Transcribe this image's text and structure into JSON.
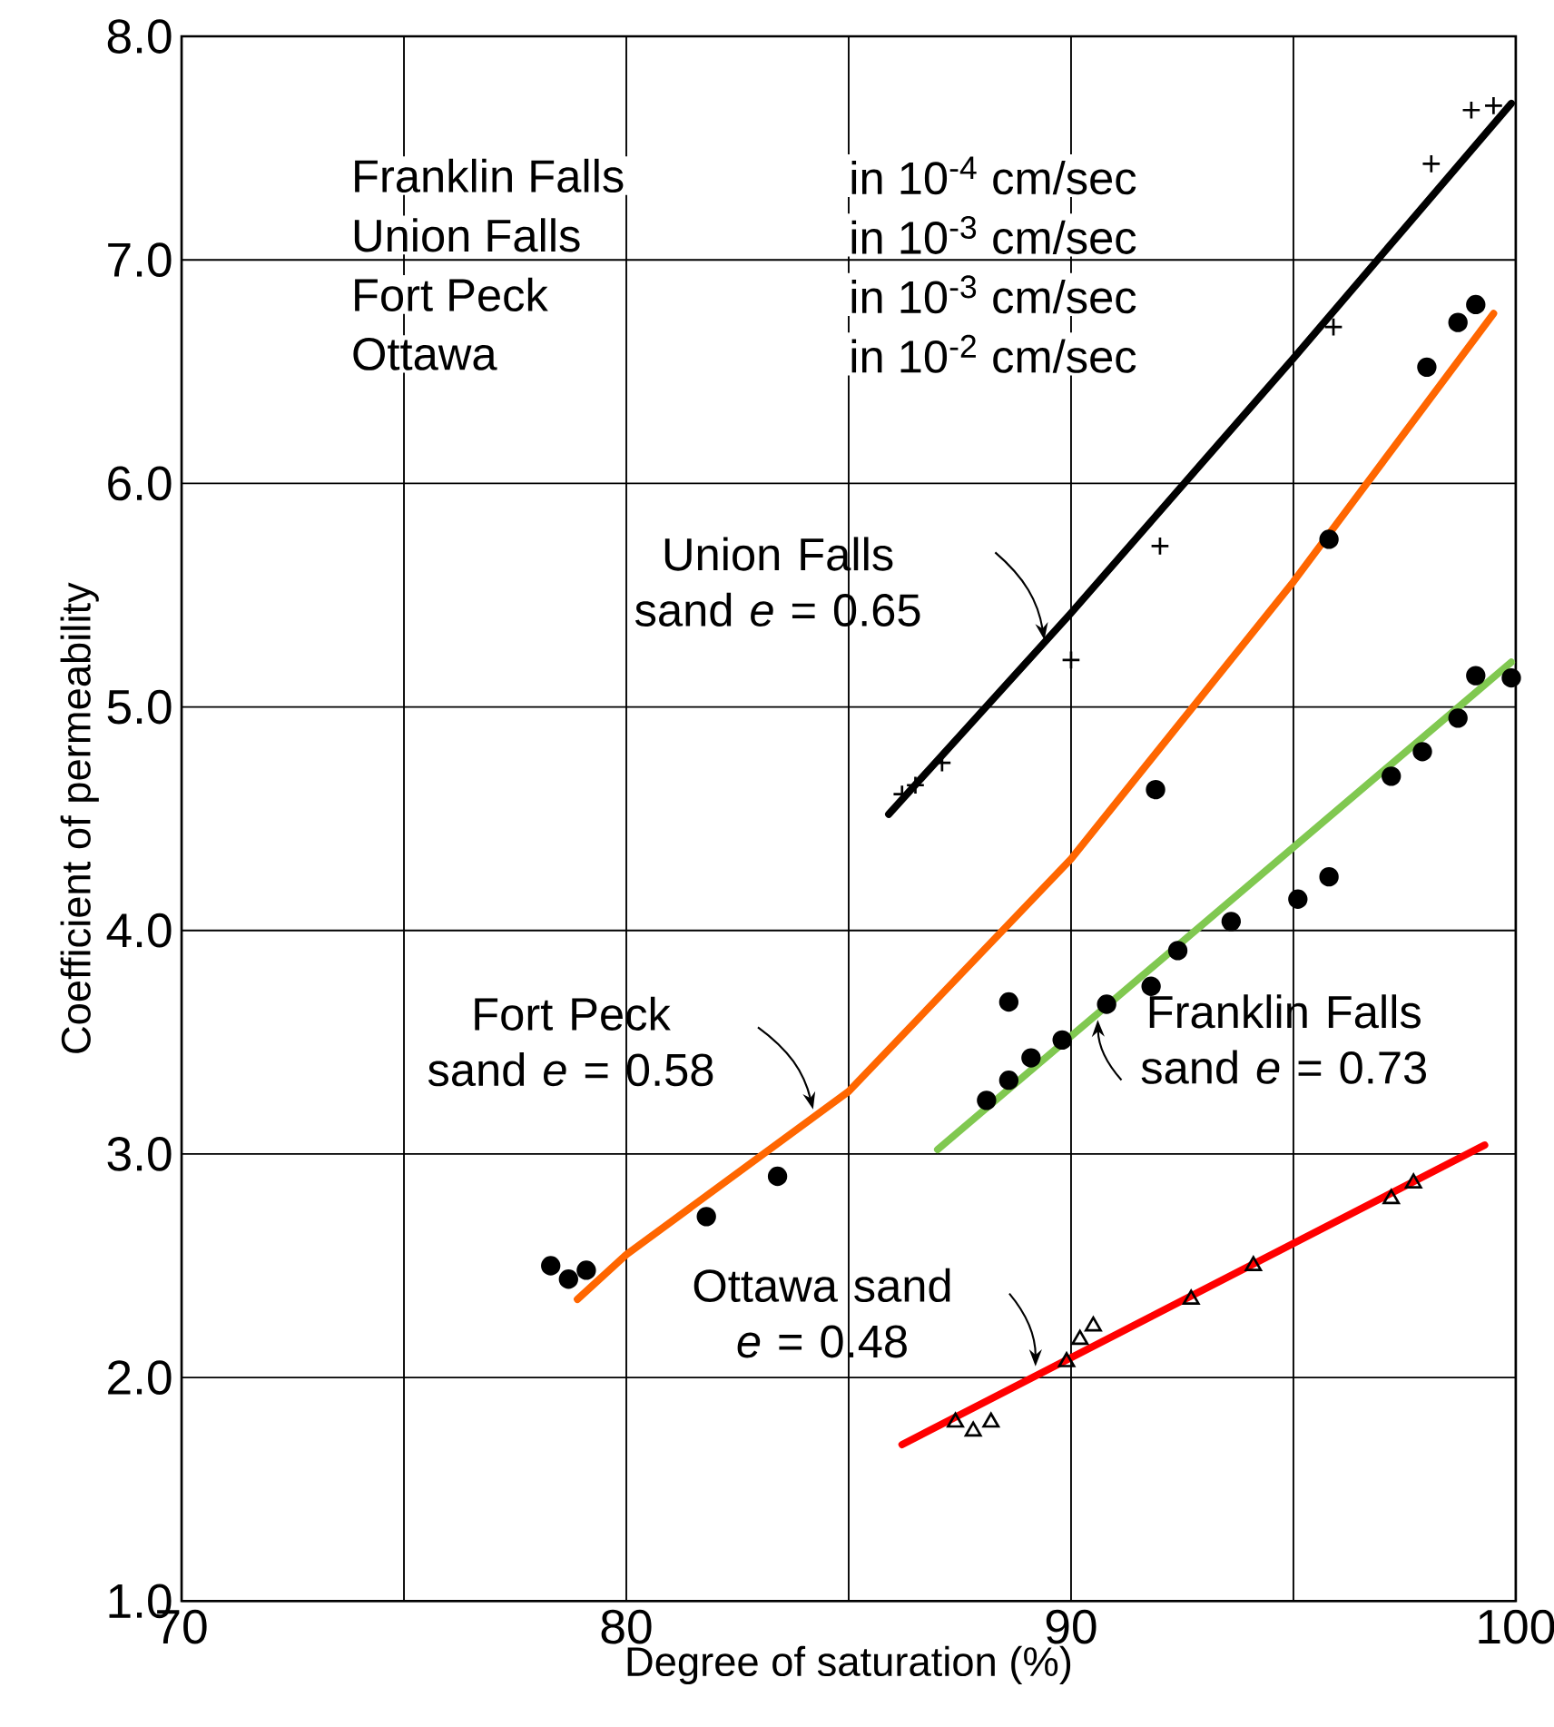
{
  "chart_data": {
    "type": "scatter",
    "xlabel": "Degree of saturation (%)",
    "ylabel": "Coefficient of permeability",
    "xlim": [
      70,
      100
    ],
    "ylim": [
      1,
      8
    ],
    "xticks": [
      70,
      {
        "value": 75,
        "label": null
      },
      80,
      {
        "value": 85,
        "label": null
      },
      90,
      {
        "value": 95,
        "label": null
      },
      100
    ],
    "yticks": [
      {
        "value": 1,
        "label": "1.0"
      },
      {
        "value": 2,
        "label": "2.0"
      },
      {
        "value": 3,
        "label": "3.0"
      },
      {
        "value": 4,
        "label": "4.0"
      },
      {
        "value": 5,
        "label": "5.0"
      },
      {
        "value": 6,
        "label": "6.0"
      },
      {
        "value": 7,
        "label": "7.0"
      },
      {
        "value": 8,
        "label": "8.0"
      }
    ],
    "grid": true,
    "series": [
      {
        "marker": "cross",
        "color": "#000000",
        "x": [
          86.2,
          86.5,
          87.1,
          90.0,
          92.0,
          95.9,
          98.1,
          99.0,
          99.5
        ],
        "values": [
          4.61,
          4.65,
          4.75,
          5.21,
          5.72,
          6.7,
          7.43,
          7.67,
          7.69
        ]
      },
      {
        "marker": "circle",
        "color": "#000000",
        "x": [
          78.3,
          78.7,
          79.1,
          81.8,
          83.4,
          88.6,
          91.9,
          95.8,
          98.0,
          98.7,
          99.1
        ],
        "values": [
          2.5,
          2.44,
          2.48,
          2.72,
          2.9,
          3.68,
          4.63,
          5.75,
          6.52,
          6.72,
          6.8
        ]
      },
      {
        "marker": "circle",
        "color": "#000000",
        "x": [
          88.1,
          88.6,
          89.1,
          89.8,
          90.8,
          91.8,
          92.4,
          93.6,
          95.1,
          95.8,
          97.2,
          97.9,
          98.7,
          99.1,
          99.9
        ],
        "values": [
          3.24,
          3.33,
          3.43,
          3.51,
          3.67,
          3.75,
          3.91,
          4.04,
          4.14,
          4.24,
          4.69,
          4.8,
          4.95,
          5.14,
          5.13
        ]
      },
      {
        "marker": "triangle",
        "color": "#000000",
        "x": [
          87.4,
          87.8,
          88.2,
          89.9,
          90.2,
          90.5,
          92.7,
          94.1,
          97.2,
          97.7
        ],
        "values": [
          1.8,
          1.76,
          1.8,
          2.07,
          2.17,
          2.23,
          2.35,
          2.5,
          2.8,
          2.87
        ]
      },
      {
        "type": "line",
        "color": "#000000",
        "x": [
          85.9,
          90,
          95,
          99.9
        ],
        "values": [
          4.52,
          5.42,
          6.56,
          7.7
        ]
      },
      {
        "type": "line",
        "color": "#ff6600",
        "x": [
          78.9,
          80,
          85,
          90,
          95,
          99.5
        ],
        "values": [
          2.35,
          2.55,
          3.28,
          4.32,
          5.56,
          6.76
        ]
      },
      {
        "type": "line",
        "color": "#80c850",
        "x": [
          87.0,
          99.9
        ],
        "values": [
          3.02,
          5.2
        ]
      },
      {
        "type": "line",
        "color": "#ff0000",
        "x": [
          86.2,
          99.3
        ],
        "values": [
          1.7,
          3.04
        ]
      }
    ],
    "annotations": [
      "Franklin Falls",
      "in 10$^{-4}$ cm/sec",
      "Union Falls",
      "in 10$^{-3}$ cm/sec",
      "Fort Peck",
      "in 10$^{-3}$ cm/sec",
      "Ottawa",
      "in 10$^{-2}$ cm/sec",
      {
        "text": "Union Falls sand *e* = 0.65",
        "x": 89.4,
        "y": 5.3
      },
      {
        "text": "Fort Peck sand *e* = 0.58",
        "x": 84.2,
        "y": 3.2
      },
      {
        "text": "Franklin Falls sand *e* = 0.73",
        "x": 90.6,
        "y": 3.6
      },
      {
        "text": "Ottawa sand *e* = 0.48",
        "x": 89.2,
        "y": 2.05
      }
    ]
  }
}
